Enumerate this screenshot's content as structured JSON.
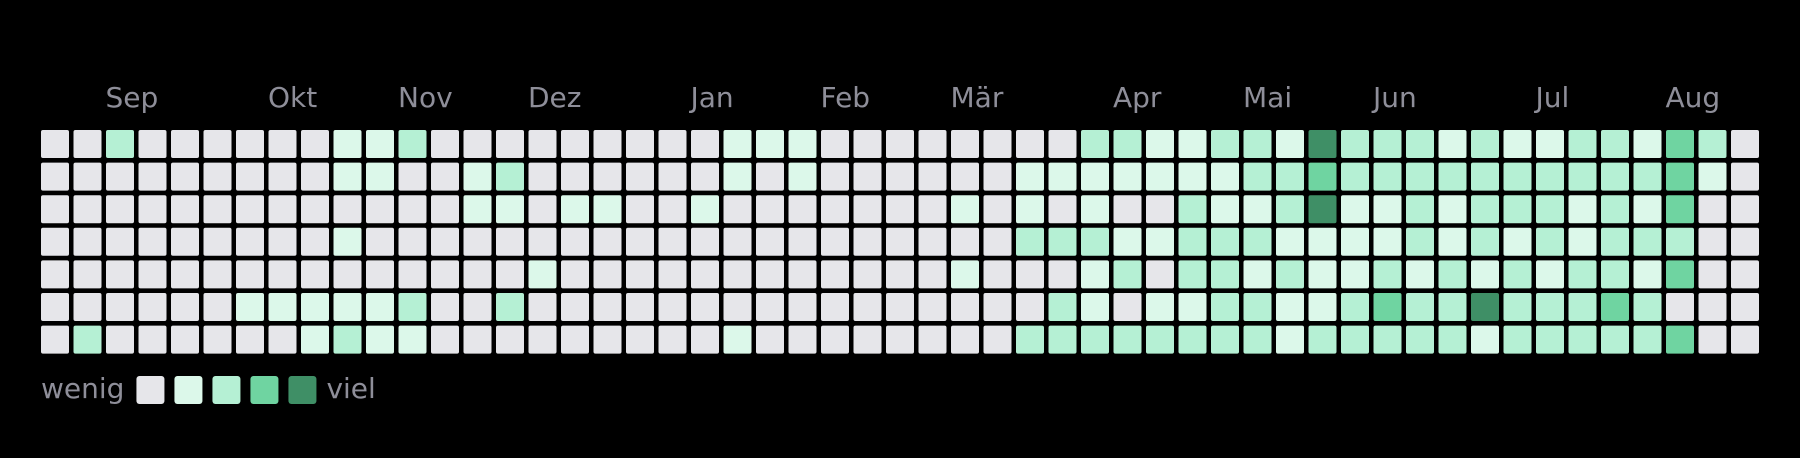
{
  "chart_data": {
    "type": "heatmap",
    "categories": [
      null,
      "Sep",
      null,
      null,
      null,
      null,
      "Okt",
      null,
      null,
      null,
      "Nov",
      null,
      null,
      null,
      "Dez",
      null,
      null,
      null,
      null,
      "Jan",
      null,
      null,
      null,
      "Feb",
      null,
      null,
      null,
      "Mär",
      null,
      null,
      null,
      null,
      "Apr",
      null,
      null,
      null,
      "Mai",
      null,
      null,
      null,
      "Jun",
      null,
      null,
      null,
      null,
      "Jul",
      null,
      null,
      null,
      "Aug",
      null,
      null,
      null
    ],
    "values": [
      [
        0,
        0,
        2,
        0,
        0,
        0,
        0,
        0,
        0,
        1,
        1,
        2,
        0,
        0,
        0,
        0,
        0,
        0,
        0,
        0,
        0,
        1,
        1,
        1,
        0,
        0,
        0,
        0,
        0,
        0,
        0,
        0,
        2,
        2,
        1,
        1,
        2,
        2,
        1,
        4,
        2,
        2,
        2,
        1,
        2,
        1,
        1,
        2,
        2,
        1,
        3,
        2,
        0
      ],
      [
        0,
        0,
        0,
        0,
        0,
        0,
        0,
        0,
        0,
        1,
        1,
        0,
        0,
        1,
        2,
        0,
        0,
        0,
        0,
        0,
        0,
        1,
        0,
        1,
        0,
        0,
        0,
        0,
        0,
        0,
        1,
        1,
        1,
        1,
        1,
        1,
        1,
        2,
        2,
        3,
        2,
        2,
        2,
        2,
        2,
        2,
        2,
        2,
        2,
        2,
        3,
        1,
        0
      ],
      [
        0,
        0,
        0,
        0,
        0,
        0,
        0,
        0,
        0,
        0,
        0,
        0,
        0,
        1,
        1,
        0,
        1,
        1,
        0,
        0,
        1,
        0,
        0,
        0,
        0,
        0,
        0,
        0,
        1,
        0,
        1,
        0,
        1,
        0,
        0,
        2,
        1,
        1,
        2,
        4,
        1,
        1,
        2,
        1,
        2,
        2,
        2,
        1,
        2,
        1,
        3,
        0,
        0
      ],
      [
        0,
        0,
        0,
        0,
        0,
        0,
        0,
        0,
        0,
        1,
        0,
        0,
        0,
        0,
        0,
        0,
        0,
        0,
        0,
        0,
        0,
        0,
        0,
        0,
        0,
        0,
        0,
        0,
        0,
        0,
        2,
        2,
        2,
        1,
        1,
        2,
        2,
        2,
        1,
        1,
        1,
        1,
        2,
        1,
        2,
        1,
        2,
        1,
        2,
        2,
        2,
        0,
        0
      ],
      [
        0,
        0,
        0,
        0,
        0,
        0,
        0,
        0,
        0,
        0,
        0,
        0,
        0,
        0,
        0,
        1,
        0,
        0,
        0,
        0,
        0,
        0,
        0,
        0,
        0,
        0,
        0,
        0,
        1,
        0,
        0,
        0,
        1,
        2,
        0,
        2,
        2,
        1,
        2,
        1,
        1,
        2,
        1,
        2,
        1,
        2,
        1,
        2,
        2,
        1,
        3,
        0,
        0
      ],
      [
        0,
        0,
        0,
        0,
        0,
        0,
        1,
        1,
        1,
        1,
        1,
        2,
        0,
        0,
        2,
        0,
        0,
        0,
        0,
        0,
        0,
        0,
        0,
        0,
        0,
        0,
        0,
        0,
        0,
        0,
        0,
        2,
        1,
        0,
        1,
        1,
        2,
        2,
        1,
        1,
        2,
        3,
        2,
        2,
        4,
        2,
        2,
        2,
        3,
        2,
        0,
        0,
        0
      ],
      [
        0,
        2,
        0,
        0,
        0,
        0,
        0,
        0,
        1,
        2,
        1,
        1,
        0,
        0,
        0,
        0,
        0,
        0,
        0,
        0,
        0,
        1,
        0,
        0,
        0,
        0,
        0,
        0,
        0,
        0,
        2,
        2,
        2,
        2,
        2,
        2,
        2,
        2,
        1,
        2,
        2,
        2,
        2,
        2,
        1,
        2,
        2,
        2,
        2,
        2,
        3,
        0,
        0
      ]
    ],
    "colors": [
      "#e6e6ea",
      "#dcf8ea",
      "#b5f0d4",
      "#6fd4a1",
      "#3f8f66"
    ],
    "legend": {
      "low": "wenig",
      "high": "viel"
    }
  }
}
